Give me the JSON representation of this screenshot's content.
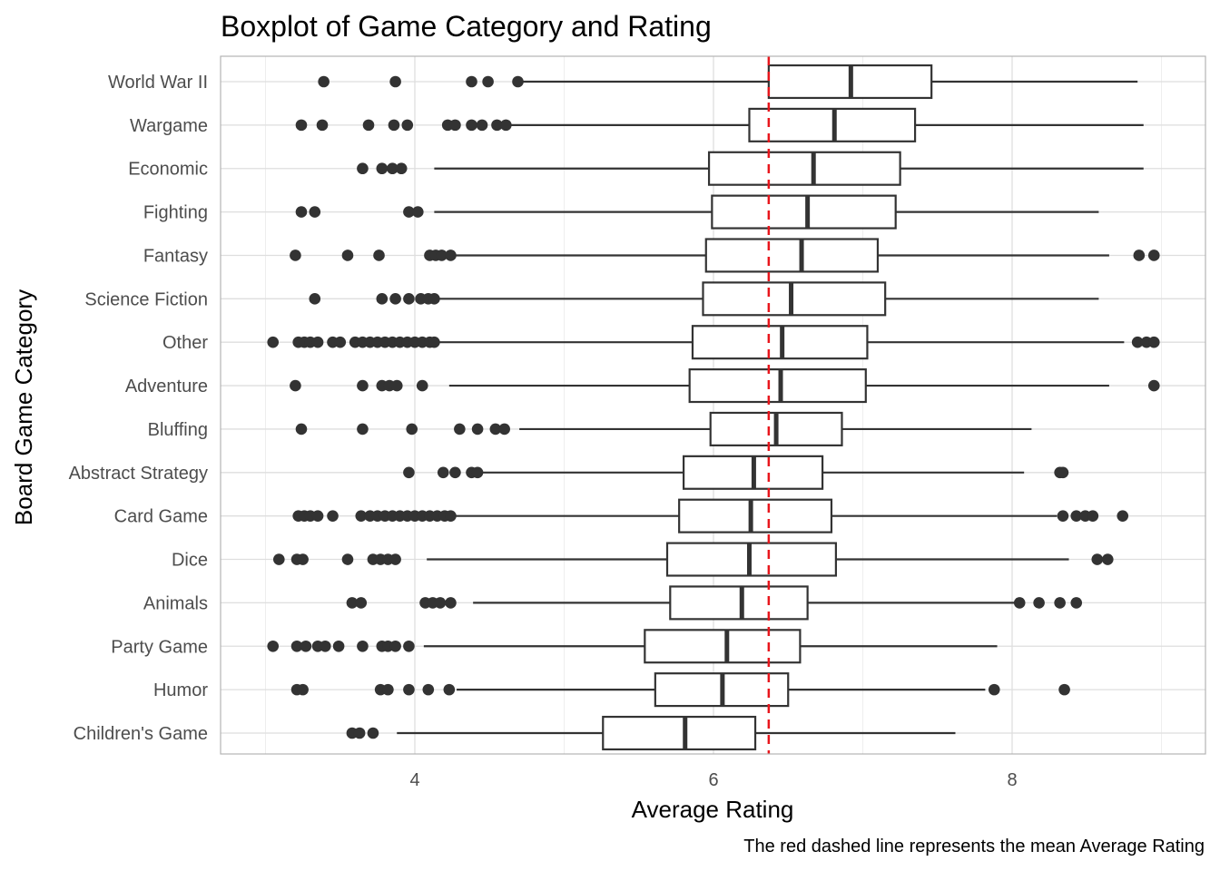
{
  "chart_data": {
    "type": "boxplot",
    "orientation": "horizontal",
    "title": "Boxplot of Game Category and Rating",
    "xlabel": "Average Rating",
    "ylabel": "Board Game Category",
    "caption": "The red dashed line represents the mean Average Rating",
    "xlim": [
      2.8,
      9.3
    ],
    "x_ticks": [
      4,
      6,
      8
    ],
    "grid": true,
    "legend": "none",
    "mean_line": {
      "value": 6.37,
      "color": "#e8161c",
      "style": "dashed"
    },
    "categories": [
      "World War II",
      "Wargame",
      "Economic",
      "Fighting",
      "Fantasy",
      "Science Fiction",
      "Other",
      "Adventure",
      "Bluffing",
      "Abstract Strategy",
      "Card Game",
      "Dice",
      "Animals",
      "Party Game",
      "Humor",
      "Children's Game"
    ],
    "boxes": [
      {
        "category": "World War II",
        "low": 4.72,
        "q1": 6.37,
        "median": 6.92,
        "q3": 7.46,
        "high": 8.84,
        "outliers": [
          3.39,
          3.87,
          4.38,
          4.49,
          4.69
        ]
      },
      {
        "category": "Wargame",
        "low": 4.61,
        "q1": 6.24,
        "median": 6.81,
        "q3": 7.35,
        "high": 8.88,
        "outliers": [
          3.24,
          3.38,
          3.69,
          3.86,
          3.95,
          4.22,
          4.27,
          4.38,
          4.45,
          4.55,
          4.61
        ]
      },
      {
        "category": "Economic",
        "low": 4.13,
        "q1": 5.97,
        "median": 6.67,
        "q3": 7.25,
        "high": 8.88,
        "outliers": [
          3.65,
          3.78,
          3.85,
          3.91
        ]
      },
      {
        "category": "Fighting",
        "low": 4.13,
        "q1": 5.99,
        "median": 6.63,
        "q3": 7.22,
        "high": 8.58,
        "outliers": [
          3.24,
          3.33,
          3.96,
          4.02
        ]
      },
      {
        "category": "Fantasy",
        "low": 4.24,
        "q1": 5.95,
        "median": 6.59,
        "q3": 7.1,
        "high": 8.65,
        "outliers": [
          3.2,
          3.55,
          3.76,
          4.1,
          4.14,
          4.18,
          4.24,
          8.85,
          8.95
        ]
      },
      {
        "category": "Science Fiction",
        "low": 4.13,
        "q1": 5.93,
        "median": 6.52,
        "q3": 7.15,
        "high": 8.58,
        "outliers": [
          3.33,
          3.78,
          3.87,
          3.96,
          4.04,
          4.09,
          4.13
        ]
      },
      {
        "category": "Other",
        "low": 4.13,
        "q1": 5.86,
        "median": 6.46,
        "q3": 7.03,
        "high": 8.75,
        "outliers": [
          3.05,
          3.22,
          3.26,
          3.3,
          3.35,
          3.45,
          3.5,
          3.6,
          3.65,
          3.7,
          3.75,
          3.8,
          3.85,
          3.9,
          3.95,
          4.0,
          4.05,
          4.1,
          4.13,
          8.84,
          8.9,
          8.95
        ]
      },
      {
        "category": "Adventure",
        "low": 4.23,
        "q1": 5.84,
        "median": 6.45,
        "q3": 7.02,
        "high": 8.65,
        "outliers": [
          3.2,
          3.65,
          3.78,
          3.83,
          3.88,
          4.05,
          8.95
        ]
      },
      {
        "category": "Bluffing",
        "low": 4.7,
        "q1": 5.98,
        "median": 6.42,
        "q3": 6.86,
        "high": 8.13,
        "outliers": [
          3.24,
          3.65,
          3.98,
          4.3,
          4.42,
          4.54,
          4.6
        ]
      },
      {
        "category": "Abstract Strategy",
        "low": 4.45,
        "q1": 5.8,
        "median": 6.27,
        "q3": 6.73,
        "high": 8.08,
        "outliers": [
          3.96,
          4.19,
          4.27,
          4.38,
          4.42,
          8.32,
          8.34
        ]
      },
      {
        "category": "Card Game",
        "low": 4.24,
        "q1": 5.77,
        "median": 6.25,
        "q3": 6.79,
        "high": 8.3,
        "outliers": [
          3.22,
          3.26,
          3.3,
          3.35,
          3.45,
          3.64,
          3.7,
          3.75,
          3.8,
          3.85,
          3.9,
          3.95,
          4.0,
          4.05,
          4.1,
          4.15,
          4.2,
          4.24,
          8.34,
          8.43,
          8.49,
          8.54,
          8.74
        ]
      },
      {
        "category": "Dice",
        "low": 4.08,
        "q1": 5.69,
        "median": 6.24,
        "q3": 6.82,
        "high": 8.38,
        "outliers": [
          3.09,
          3.21,
          3.25,
          3.55,
          3.72,
          3.77,
          3.82,
          3.87,
          8.57,
          8.64
        ]
      },
      {
        "category": "Animals",
        "low": 4.39,
        "q1": 5.71,
        "median": 6.19,
        "q3": 6.63,
        "high": 8.04,
        "outliers": [
          3.58,
          3.64,
          4.07,
          4.12,
          4.17,
          4.24,
          8.05,
          8.18,
          8.32,
          8.43
        ]
      },
      {
        "category": "Party Game",
        "low": 4.06,
        "q1": 5.54,
        "median": 6.09,
        "q3": 6.58,
        "high": 7.9,
        "outliers": [
          3.05,
          3.21,
          3.27,
          3.35,
          3.4,
          3.49,
          3.65,
          3.78,
          3.82,
          3.87,
          3.96
        ]
      },
      {
        "category": "Humor",
        "low": 4.28,
        "q1": 5.61,
        "median": 6.06,
        "q3": 6.5,
        "high": 7.82,
        "outliers": [
          3.21,
          3.25,
          3.77,
          3.82,
          3.96,
          4.09,
          4.23,
          7.88,
          8.35
        ]
      },
      {
        "category": "Children's Game",
        "low": 3.88,
        "q1": 5.26,
        "median": 5.81,
        "q3": 6.28,
        "high": 7.62,
        "outliers": [
          3.58,
          3.63,
          3.72
        ]
      }
    ]
  }
}
